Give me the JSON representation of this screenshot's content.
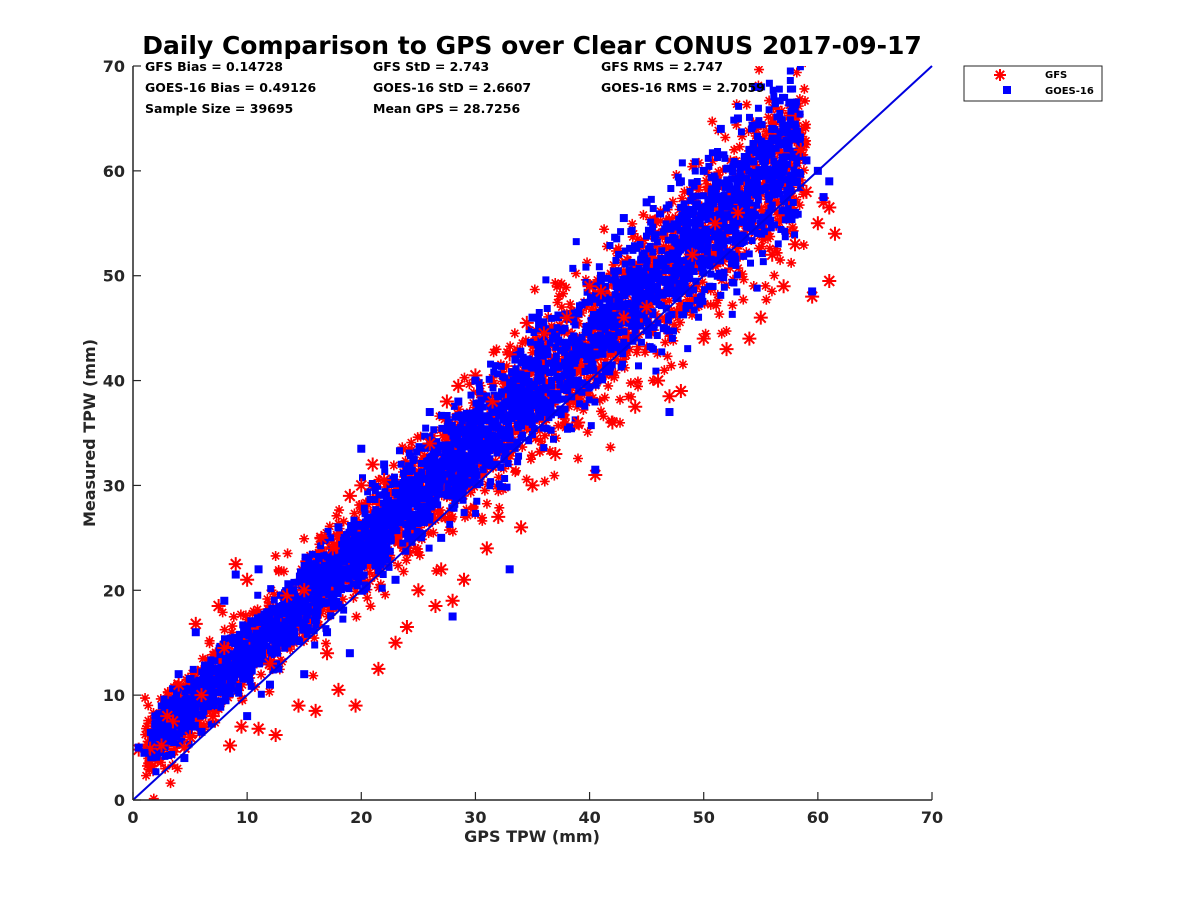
{
  "chart_data": {
    "type": "scatter",
    "title": "Daily Comparison to GPS over Clear CONUS 2017-09-17",
    "xlabel": "GPS TPW (mm)",
    "ylabel": "Measured TPW (mm)",
    "xlim": [
      0,
      70
    ],
    "ylim": [
      0,
      70
    ],
    "xticks": [
      0,
      10,
      20,
      30,
      40,
      50,
      60,
      70
    ],
    "yticks": [
      0,
      10,
      20,
      30,
      40,
      50,
      60,
      70
    ],
    "grid": false,
    "legend_position": "top-right-outside",
    "reference_line": {
      "name": "1:1",
      "x": [
        0,
        70
      ],
      "y": [
        0,
        70
      ],
      "color": "#0000e0"
    },
    "stats": [
      {
        "label": "GFS Bias = 0.14728"
      },
      {
        "label": "GFS StD = 2.743"
      },
      {
        "label": "GFS RMS = 2.747"
      },
      {
        "label": "GOES-16 Bias = 0.49126"
      },
      {
        "label": "GOES-16 StD = 2.6607"
      },
      {
        "label": "GOES-16 RMS = 2.7059"
      },
      {
        "label": "Sample Size = 39695"
      },
      {
        "label": "Mean GPS = 28.7256"
      }
    ],
    "series": [
      {
        "name": "GFS",
        "marker": "asterisk",
        "color": "#ff0000",
        "points": [
          [
            0.5,
            4.8
          ],
          [
            1.5,
            4.9
          ],
          [
            2.5,
            5.2
          ],
          [
            3.0,
            8.0
          ],
          [
            3.5,
            7.5
          ],
          [
            4.0,
            11.0
          ],
          [
            4.5,
            5.0
          ],
          [
            5.0,
            6.0
          ],
          [
            5.5,
            16.8
          ],
          [
            6.0,
            10.0
          ],
          [
            7.0,
            8.0
          ],
          [
            7.5,
            18.5
          ],
          [
            8.0,
            14.5
          ],
          [
            9.0,
            22.5
          ],
          [
            8.5,
            5.2
          ],
          [
            9.5,
            7.0
          ],
          [
            10.0,
            21.0
          ],
          [
            11.0,
            6.8
          ],
          [
            12.0,
            13.0
          ],
          [
            12.5,
            6.2
          ],
          [
            13.5,
            19.5
          ],
          [
            14.5,
            9.0
          ],
          [
            15.0,
            20.0
          ],
          [
            16.0,
            8.5
          ],
          [
            16.5,
            25.0
          ],
          [
            17.0,
            14.0
          ],
          [
            17.5,
            24.0
          ],
          [
            18.0,
            10.5
          ],
          [
            19.0,
            29.0
          ],
          [
            19.5,
            9.0
          ],
          [
            20.0,
            30.0
          ],
          [
            21.0,
            32.0
          ],
          [
            21.5,
            12.5
          ],
          [
            22.0,
            30.5
          ],
          [
            23.0,
            15.0
          ],
          [
            24.0,
            16.5
          ],
          [
            25.0,
            20.0
          ],
          [
            26.0,
            34.0
          ],
          [
            26.5,
            18.5
          ],
          [
            27.0,
            22.0
          ],
          [
            27.5,
            38.0
          ],
          [
            28.0,
            19.0
          ],
          [
            28.5,
            39.5
          ],
          [
            29.0,
            21.0
          ],
          [
            30.0,
            40.5
          ],
          [
            31.0,
            24.0
          ],
          [
            31.5,
            38.0
          ],
          [
            32.0,
            27.0
          ],
          [
            33.0,
            42.5
          ],
          [
            34.0,
            26.0
          ],
          [
            34.5,
            45.5
          ],
          [
            35.0,
            30.0
          ],
          [
            36.0,
            44.5
          ],
          [
            37.0,
            33.0
          ],
          [
            38.0,
            46.0
          ],
          [
            39.0,
            36.0
          ],
          [
            40.0,
            49.0
          ],
          [
            40.5,
            31.0
          ],
          [
            41.0,
            48.5
          ],
          [
            42.0,
            36.0
          ],
          [
            43.0,
            46.0
          ],
          [
            44.0,
            37.5
          ],
          [
            45.0,
            47.0
          ],
          [
            46.0,
            40.0
          ],
          [
            47.0,
            38.5
          ],
          [
            48.0,
            39.0
          ],
          [
            49.0,
            52.0
          ],
          [
            50.0,
            44.0
          ],
          [
            51.0,
            55.0
          ],
          [
            52.0,
            43.0
          ],
          [
            53.0,
            56.0
          ],
          [
            54.0,
            44.0
          ],
          [
            55.0,
            46.0
          ],
          [
            56.0,
            52.0
          ],
          [
            57.0,
            49.0
          ],
          [
            58.0,
            53.0
          ],
          [
            58.5,
            62.0
          ],
          [
            59.0,
            58.0
          ],
          [
            59.5,
            48.0
          ],
          [
            60.0,
            55.0
          ],
          [
            60.5,
            57.0
          ],
          [
            61.0,
            56.5
          ],
          [
            61.0,
            49.5
          ],
          [
            61.5,
            54.0
          ]
        ]
      },
      {
        "name": "GOES-16",
        "marker": "square",
        "color": "#0000ff",
        "points": [
          [
            0.5,
            5.0
          ],
          [
            1.0,
            4.5
          ],
          [
            2.0,
            6.0
          ],
          [
            3.0,
            7.0
          ],
          [
            4.0,
            12.0
          ],
          [
            4.5,
            4.0
          ],
          [
            5.0,
            9.0
          ],
          [
            5.5,
            16.0
          ],
          [
            6.0,
            6.5
          ],
          [
            7.0,
            10.0
          ],
          [
            8.0,
            19.0
          ],
          [
            9.0,
            21.5
          ],
          [
            10.0,
            8.0
          ],
          [
            11.0,
            22.0
          ],
          [
            12.0,
            11.0
          ],
          [
            13.0,
            15.0
          ],
          [
            14.0,
            20.0
          ],
          [
            15.0,
            12.0
          ],
          [
            16.0,
            22.5
          ],
          [
            17.0,
            16.0
          ],
          [
            18.0,
            26.0
          ],
          [
            19.0,
            14.0
          ],
          [
            20.0,
            33.5
          ],
          [
            21.0,
            24.0
          ],
          [
            22.0,
            32.0
          ],
          [
            23.0,
            21.0
          ],
          [
            24.0,
            31.5
          ],
          [
            25.0,
            28.0
          ],
          [
            26.0,
            37.0
          ],
          [
            27.0,
            25.0
          ],
          [
            28.0,
            17.5
          ],
          [
            28.5,
            38.0
          ],
          [
            29.0,
            30.0
          ],
          [
            30.0,
            40.0
          ],
          [
            31.0,
            33.0
          ],
          [
            32.0,
            38.5
          ],
          [
            33.0,
            22.0
          ],
          [
            33.5,
            42.0
          ],
          [
            34.0,
            36.0
          ],
          [
            35.0,
            46.0
          ],
          [
            36.0,
            38.0
          ],
          [
            37.0,
            44.0
          ],
          [
            38.0,
            41.0
          ],
          [
            39.0,
            46.5
          ],
          [
            40.0,
            43.0
          ],
          [
            40.5,
            31.5
          ],
          [
            41.0,
            50.0
          ],
          [
            42.0,
            46.0
          ],
          [
            43.0,
            55.5
          ],
          [
            44.0,
            50.0
          ],
          [
            45.0,
            57.0
          ],
          [
            46.0,
            51.0
          ],
          [
            46.5,
            45.0
          ],
          [
            47.0,
            37.0
          ],
          [
            48.0,
            59.0
          ],
          [
            49.0,
            54.0
          ],
          [
            50.0,
            60.0
          ],
          [
            51.0,
            58.0
          ],
          [
            51.5,
            64.0
          ],
          [
            52.0,
            52.0
          ],
          [
            53.0,
            65.0
          ],
          [
            54.0,
            62.0
          ],
          [
            54.5,
            68.0
          ],
          [
            55.0,
            55.0
          ],
          [
            56.0,
            64.0
          ],
          [
            57.0,
            60.0
          ],
          [
            57.5,
            66.5
          ],
          [
            58.0,
            56.0
          ],
          [
            59.0,
            61.0
          ],
          [
            59.5,
            48.5
          ],
          [
            60.0,
            60.0
          ],
          [
            60.5,
            57.5
          ],
          [
            61.0,
            59.0
          ]
        ]
      }
    ]
  }
}
